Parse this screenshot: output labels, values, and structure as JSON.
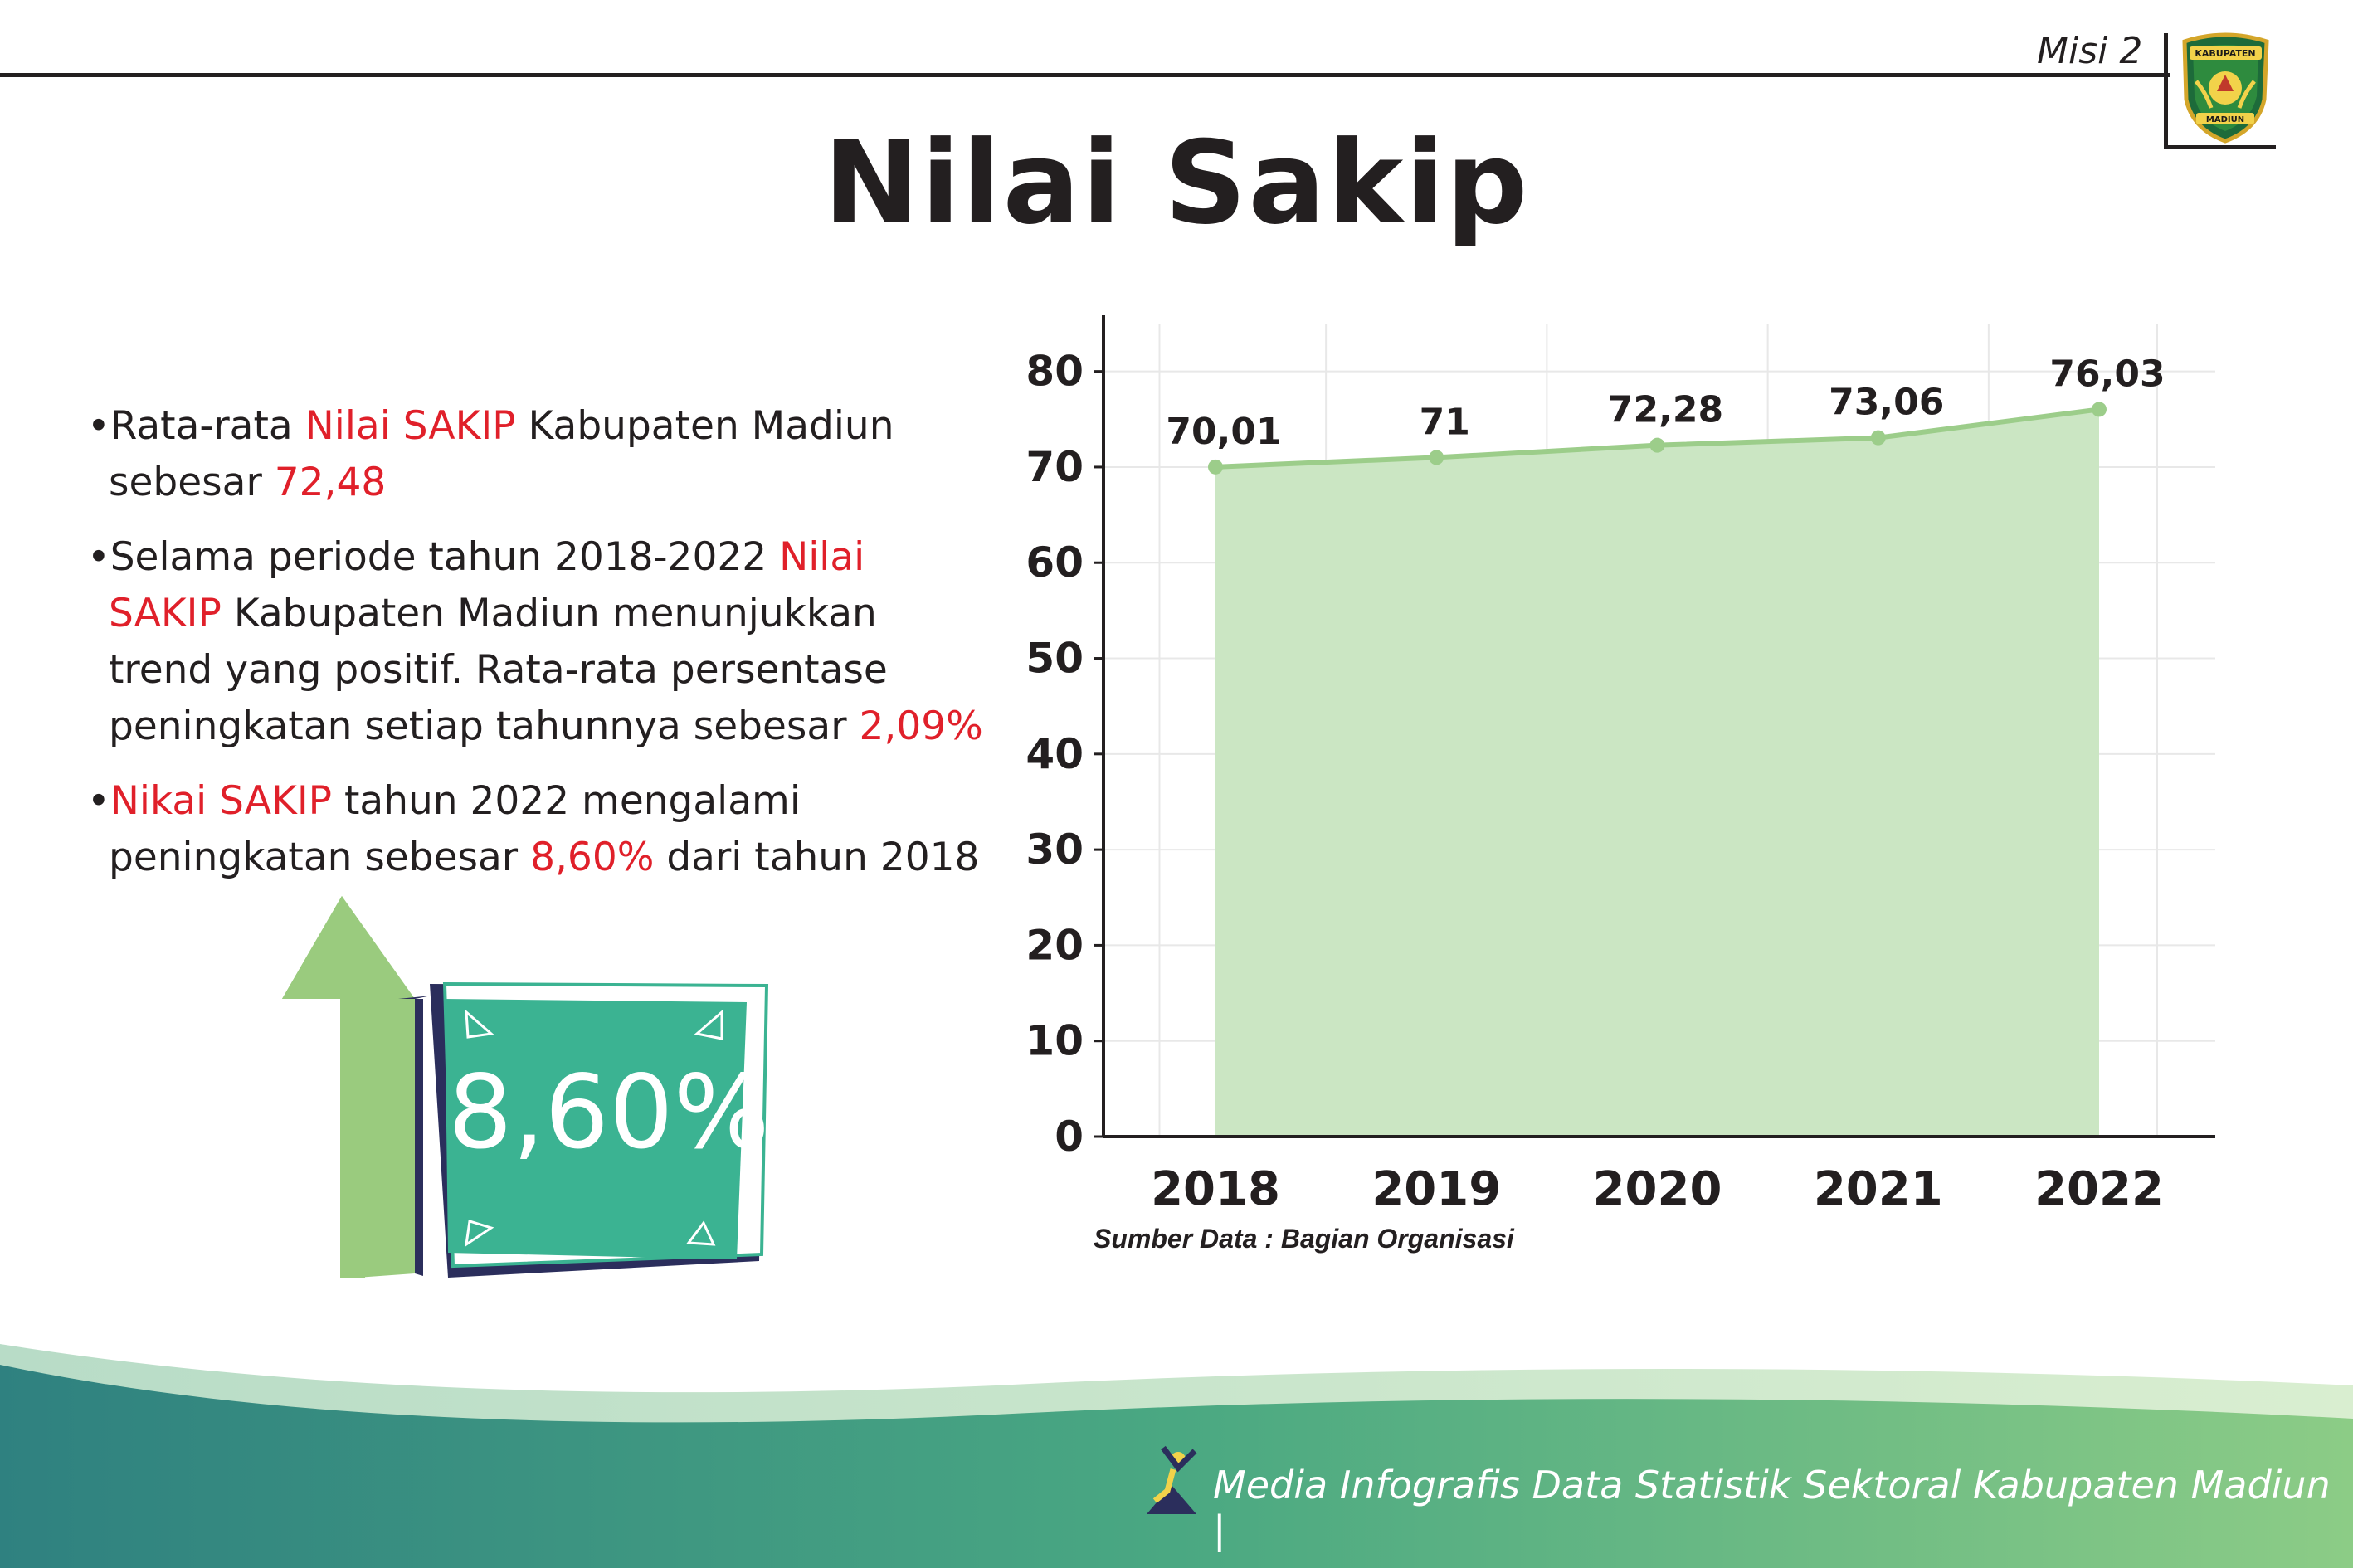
{
  "header": {
    "misi_label": "Misi 2",
    "logo_text_top": "KABUPATEN",
    "logo_text_bottom": "MADIUN"
  },
  "title": "Nilai Sakip",
  "bullets": [
    [
      {
        "t": "•Rata-rata "
      },
      {
        "t": "Nilai SAKIP",
        "hl": true
      },
      {
        "t": " Kabupaten Madiun sebesar "
      },
      {
        "t": "72,48",
        "hl": true
      }
    ],
    [
      {
        "t": "•Selama periode tahun 2018-2022 "
      },
      {
        "t": "Nilai SAKIP",
        "hl": true
      },
      {
        "t": " Kabupaten Madiun menunjukkan trend yang positif. Rata-rata persentase peningkatan setiap tahunnya sebesar "
      },
      {
        "t": "2,09%",
        "hl": true
      }
    ],
    [
      {
        "t": "•"
      },
      {
        "t": "Nikai SAKIP",
        "hl": true
      },
      {
        "t": " tahun 2022 mengalami peningkatan sebesar "
      },
      {
        "t": "8,60%",
        "hl": true
      },
      {
        "t": " dari tahun 2018"
      }
    ]
  ],
  "highlight_box": {
    "value": "8,60%"
  },
  "chart_data": {
    "type": "area",
    "categories": [
      "2018",
      "2019",
      "2020",
      "2021",
      "2022"
    ],
    "values": [
      70.01,
      71,
      72.28,
      73.06,
      76.03
    ],
    "value_labels": [
      "70,01",
      "71",
      "72,28",
      "73,06",
      "76,03"
    ],
    "yticks": [
      "0",
      "10",
      "20",
      "30",
      "40",
      "50",
      "60",
      "70",
      "80"
    ],
    "ylim": [
      0,
      85
    ],
    "grid": true,
    "colors": {
      "fill": "#cbe6c3",
      "line": "#9ccd8a"
    }
  },
  "source": "Sumber Data : Bagian Organisasi",
  "footer": {
    "text": "Media Infografis Data Statistik Sektoral Kabupaten Madiun |"
  },
  "colors": {
    "highlight": "#e0202a",
    "teal": "#3bb392",
    "arrow_green": "#9acb7e",
    "navy": "#2b2e5c"
  }
}
